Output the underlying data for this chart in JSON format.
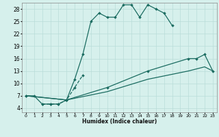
{
  "title": "",
  "xlabel": "Humidex (Indice chaleur)",
  "bg_color": "#d6f0ec",
  "grid_color": "#b8ddd8",
  "line_color": "#1a6b60",
  "xlim": [
    -0.5,
    23.5
  ],
  "ylim": [
    3,
    29.5
  ],
  "xticks": [
    0,
    1,
    2,
    3,
    4,
    5,
    6,
    7,
    8,
    9,
    10,
    11,
    12,
    13,
    14,
    15,
    16,
    17,
    18,
    19,
    20,
    21,
    22,
    23
  ],
  "yticks": [
    4,
    7,
    10,
    13,
    16,
    19,
    22,
    25,
    28
  ],
  "s1x": [
    0,
    1,
    2,
    3,
    4,
    5,
    6,
    7,
    8,
    9,
    10,
    11,
    12,
    13,
    14,
    15,
    16,
    17,
    18
  ],
  "s1y": [
    7,
    7,
    5,
    5,
    5,
    6,
    11,
    17,
    25,
    27,
    26,
    26,
    29,
    29,
    26,
    29,
    28,
    27,
    24
  ],
  "s2x": [
    2,
    3,
    4,
    5,
    6,
    7
  ],
  "s2y": [
    5,
    5,
    5,
    6,
    9,
    12
  ],
  "s3x": [
    0,
    5,
    10,
    15,
    20,
    21,
    22,
    23
  ],
  "s3y": [
    7,
    6,
    9,
    13,
    16,
    16,
    17,
    13
  ],
  "s4x": [
    0,
    5,
    10,
    15,
    20,
    22,
    23
  ],
  "s4y": [
    7,
    6,
    8,
    11,
    13,
    14,
    13
  ]
}
